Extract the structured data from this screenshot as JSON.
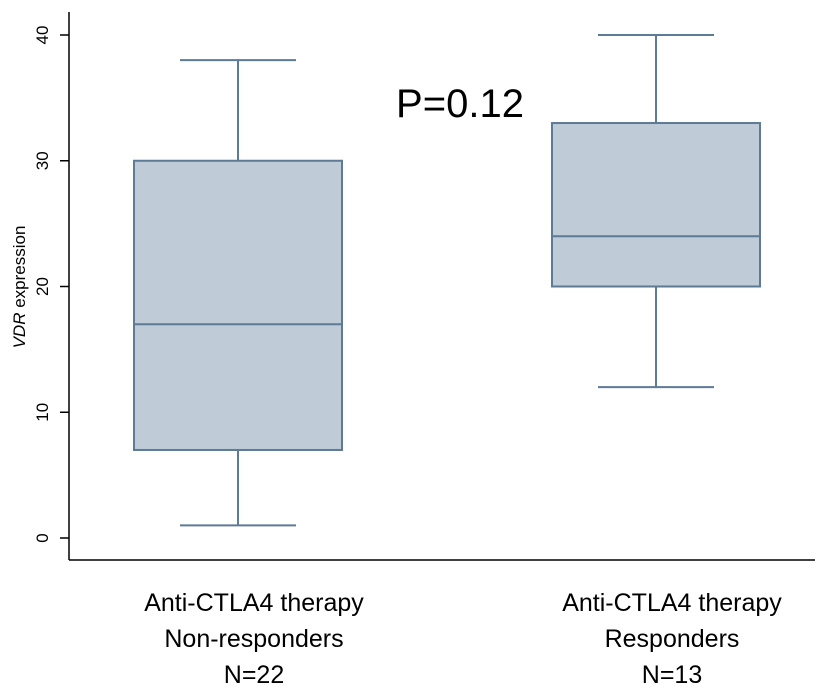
{
  "chart_data": {
    "type": "box",
    "title": "",
    "ylabel_italic": "VDR",
    "ylabel_rest": " expression",
    "ylim": [
      0,
      40
    ],
    "yticks": [
      0,
      10,
      20,
      30,
      40
    ],
    "annotation": "P=0.12",
    "box_fill": "#bfcbd7",
    "box_stroke": "#5d7a96",
    "groups": [
      {
        "label_lines": [
          "Anti-CTLA4 therapy",
          "Non-responders",
          "N=22"
        ],
        "min": 1,
        "q1": 7,
        "median": 17,
        "q3": 30,
        "max": 38
      },
      {
        "label_lines": [
          "Anti-CTLA4 therapy",
          "Responders",
          "N=13"
        ],
        "min": 12,
        "q1": 20,
        "median": 24,
        "q3": 33,
        "max": 40
      }
    ]
  }
}
